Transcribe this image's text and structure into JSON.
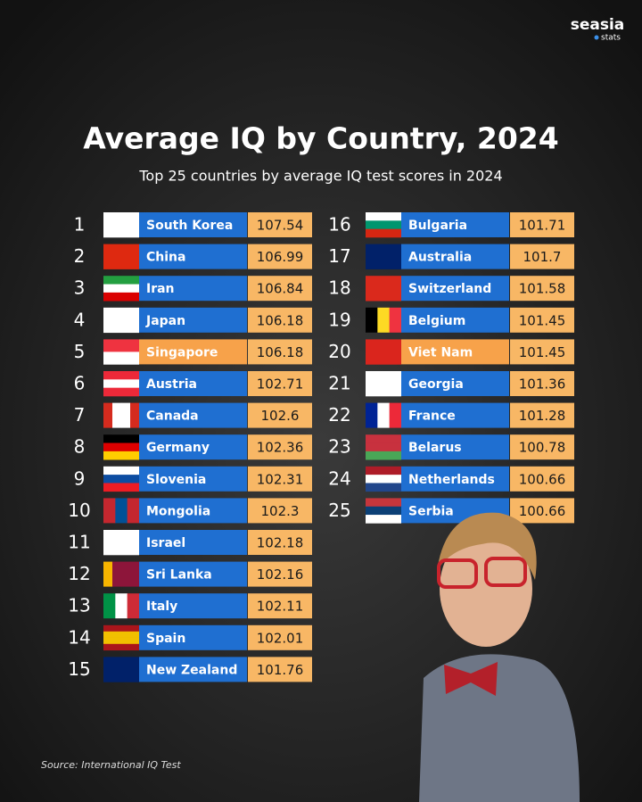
{
  "header": {
    "brand": "seasia",
    "brand_sub": "stats",
    "title": "Average IQ by Country, 2024",
    "subtitle": "Top 25 countries by average IQ test scores in 2024"
  },
  "bar_color": "#1f6fd1",
  "highlight_color": "#f7a24a",
  "value_color": "#f8b765",
  "rows": [
    {
      "rank": 1,
      "country": "South Korea",
      "value": 107.54
    },
    {
      "rank": 2,
      "country": "China",
      "value": 106.99
    },
    {
      "rank": 3,
      "country": "Iran",
      "value": 106.84
    },
    {
      "rank": 4,
      "country": "Japan",
      "value": 106.18
    },
    {
      "rank": 5,
      "country": "Singapore",
      "value": 106.18,
      "highlighted": true
    },
    {
      "rank": 6,
      "country": "Austria",
      "value": 102.71
    },
    {
      "rank": 7,
      "country": "Canada",
      "value": 102.6
    },
    {
      "rank": 8,
      "country": "Germany",
      "value": 102.36
    },
    {
      "rank": 9,
      "country": "Slovenia",
      "value": 102.31
    },
    {
      "rank": 10,
      "country": "Mongolia",
      "value": 102.3
    },
    {
      "rank": 11,
      "country": "Israel",
      "value": 102.18
    },
    {
      "rank": 12,
      "country": "Sri Lanka",
      "value": 102.16
    },
    {
      "rank": 13,
      "country": "Italy",
      "value": 102.11
    },
    {
      "rank": 14,
      "country": "Spain",
      "value": 102.01
    },
    {
      "rank": 15,
      "country": "New Zealand",
      "value": 101.76
    },
    {
      "rank": 16,
      "country": "Bulgaria",
      "value": 101.71
    },
    {
      "rank": 17,
      "country": "Australia",
      "value": 101.7
    },
    {
      "rank": 18,
      "country": "Switzerland",
      "value": 101.58
    },
    {
      "rank": 19,
      "country": "Belgium",
      "value": 101.45
    },
    {
      "rank": 20,
      "country": "Viet Nam",
      "value": 101.45,
      "highlighted": true
    },
    {
      "rank": 21,
      "country": "Georgia",
      "value": 101.36
    },
    {
      "rank": 22,
      "country": "France",
      "value": 101.28
    },
    {
      "rank": 23,
      "country": "Belarus",
      "value": 100.78
    },
    {
      "rank": 24,
      "country": "Netherlands",
      "value": 100.66
    },
    {
      "rank": 25,
      "country": "Serbia",
      "value": 100.66
    }
  ],
  "source": "Source: International IQ Test"
}
